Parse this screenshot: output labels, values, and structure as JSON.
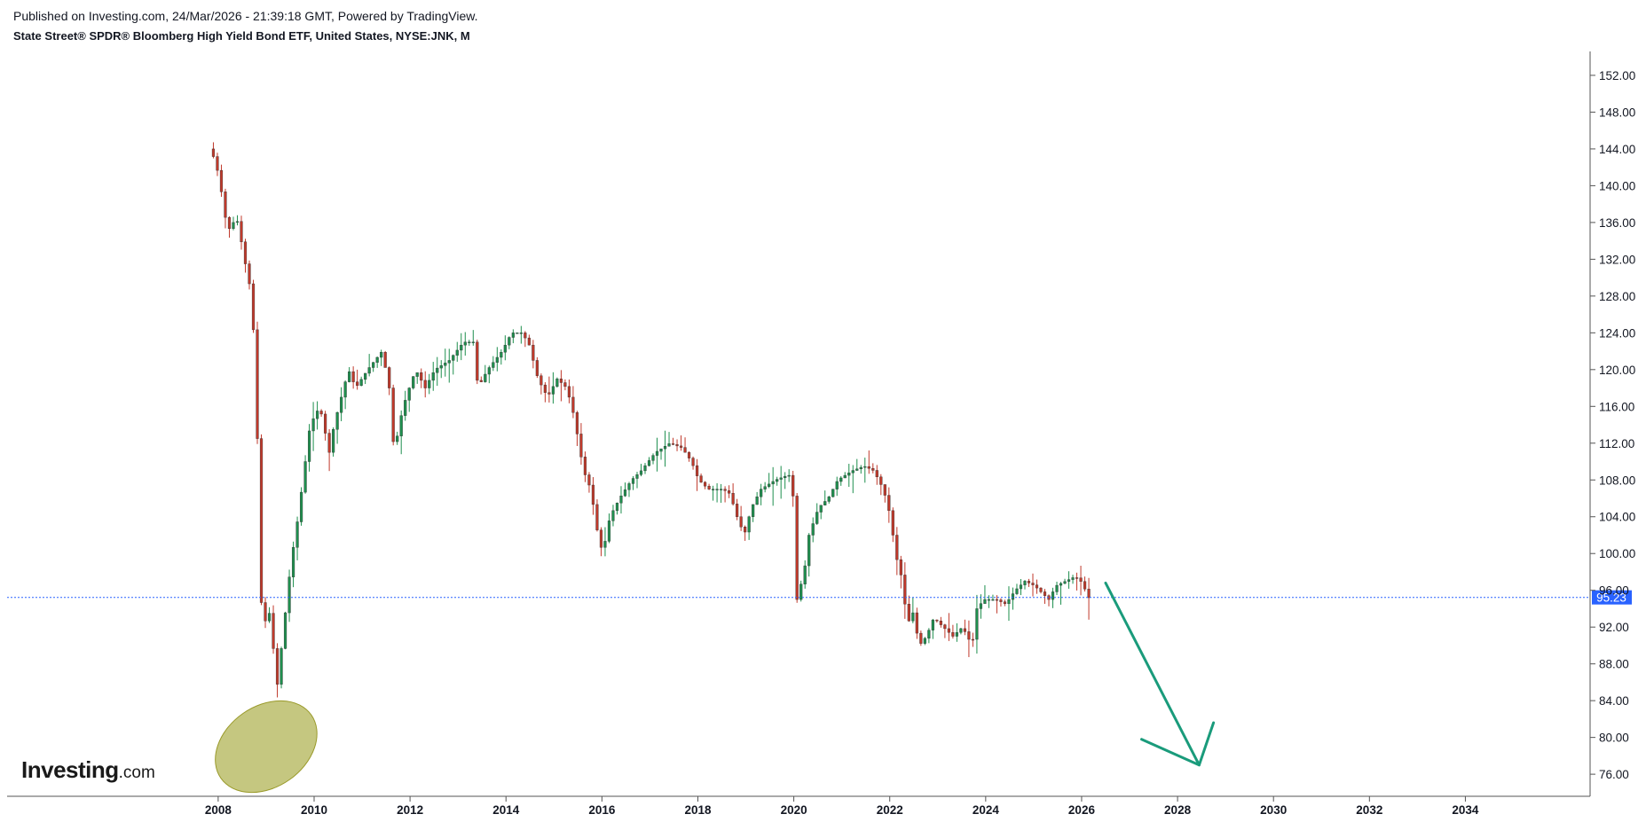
{
  "header": {
    "published": "Published on Investing.com, 24/Mar/2026 - 21:39:18 GMT, Powered by TradingView.",
    "symbol_title": "State Street® SPDR® Bloomberg High Yield Bond ETF, United States, NYSE:JNK, M"
  },
  "logo": {
    "main": "Investing",
    "suffix": ".com"
  },
  "colors": {
    "up": "#1e8f4e",
    "down": "#c0392b",
    "price_line": "#2962ff",
    "price_badge": "#2962ff",
    "arrow": "#1a9b7b",
    "ellipse_fill": "#c5c780",
    "ellipse_stroke": "#9a9a2a"
  },
  "chart_data": {
    "type": "candlestick",
    "interval": "M",
    "x_ticks": [
      "2008",
      "2010",
      "2012",
      "2014",
      "2016",
      "2018",
      "2020",
      "2022",
      "2024",
      "2026",
      "2028",
      "2030",
      "2032",
      "2034"
    ],
    "y_ticks": [
      "152.00",
      "148.00",
      "144.00",
      "140.00",
      "136.00",
      "132.00",
      "128.00",
      "124.00",
      "120.00",
      "116.00",
      "112.00",
      "108.00",
      "104.00",
      "100.00",
      "96.00",
      "92.00",
      "88.00",
      "84.00",
      "80.00",
      "76.00"
    ],
    "ylim": [
      73.6,
      154.6
    ],
    "xlim": [
      2003.6,
      2036.6
    ],
    "current_price": "95.23",
    "current_price_value": 95.23,
    "price_anchors": [
      [
        2007.9,
        144
      ],
      [
        2008.0,
        143
      ],
      [
        2008.1,
        141
      ],
      [
        2008.25,
        136
      ],
      [
        2008.35,
        135
      ],
      [
        2008.45,
        137
      ],
      [
        2008.6,
        133
      ],
      [
        2008.7,
        130
      ],
      [
        2008.8,
        128
      ],
      [
        2008.85,
        117
      ],
      [
        2008.95,
        108
      ],
      [
        2009.0,
        88
      ],
      [
        2009.1,
        95
      ],
      [
        2009.2,
        92
      ],
      [
        2009.3,
        85
      ],
      [
        2009.45,
        92
      ],
      [
        2009.6,
        99
      ],
      [
        2009.75,
        104
      ],
      [
        2009.9,
        110
      ],
      [
        2010.0,
        114
      ],
      [
        2010.2,
        116
      ],
      [
        2010.4,
        111
      ],
      [
        2010.5,
        114
      ],
      [
        2010.8,
        120
      ],
      [
        2010.95,
        118
      ],
      [
        2011.2,
        120
      ],
      [
        2011.5,
        122
      ],
      [
        2011.65,
        118
      ],
      [
        2011.75,
        111
      ],
      [
        2011.9,
        115
      ],
      [
        2012.0,
        117
      ],
      [
        2012.2,
        120
      ],
      [
        2012.4,
        118
      ],
      [
        2012.6,
        120
      ],
      [
        2012.9,
        121
      ],
      [
        2013.2,
        123
      ],
      [
        2013.4,
        123
      ],
      [
        2013.5,
        118
      ],
      [
        2013.7,
        120
      ],
      [
        2014.0,
        122
      ],
      [
        2014.2,
        124
      ],
      [
        2014.4,
        124
      ],
      [
        2014.55,
        123
      ],
      [
        2014.75,
        119
      ],
      [
        2014.95,
        117
      ],
      [
        2015.15,
        119
      ],
      [
        2015.35,
        118
      ],
      [
        2015.5,
        115
      ],
      [
        2015.6,
        112
      ],
      [
        2015.7,
        109
      ],
      [
        2015.85,
        107
      ],
      [
        2016.0,
        102
      ],
      [
        2016.1,
        100
      ],
      [
        2016.25,
        104
      ],
      [
        2016.45,
        106
      ],
      [
        2016.7,
        108
      ],
      [
        2016.9,
        109
      ],
      [
        2017.2,
        111
      ],
      [
        2017.5,
        112
      ],
      [
        2017.75,
        111.5
      ],
      [
        2017.95,
        110
      ],
      [
        2018.1,
        108
      ],
      [
        2018.3,
        107
      ],
      [
        2018.6,
        107
      ],
      [
        2018.75,
        106.5
      ],
      [
        2018.9,
        104
      ],
      [
        2019.05,
        102
      ],
      [
        2019.2,
        105
      ],
      [
        2019.4,
        107
      ],
      [
        2019.7,
        108
      ],
      [
        2019.95,
        108.5
      ],
      [
        2020.05,
        108.5
      ],
      [
        2020.15,
        95
      ],
      [
        2020.3,
        98
      ],
      [
        2020.4,
        102
      ],
      [
        2020.6,
        105
      ],
      [
        2020.8,
        106
      ],
      [
        2021.0,
        108
      ],
      [
        2021.3,
        109
      ],
      [
        2021.55,
        109.5
      ],
      [
        2021.75,
        109
      ],
      [
        2021.95,
        107
      ],
      [
        2022.1,
        104
      ],
      [
        2022.2,
        100
      ],
      [
        2022.35,
        97
      ],
      [
        2022.45,
        92
      ],
      [
        2022.55,
        94
      ],
      [
        2022.7,
        90
      ],
      [
        2022.85,
        91
      ],
      [
        2023.0,
        93
      ],
      [
        2023.2,
        92
      ],
      [
        2023.4,
        91
      ],
      [
        2023.6,
        92
      ],
      [
        2023.8,
        90
      ],
      [
        2023.9,
        94
      ],
      [
        2024.05,
        95
      ],
      [
        2024.3,
        95
      ],
      [
        2024.5,
        94.5
      ],
      [
        2024.7,
        96
      ],
      [
        2024.9,
        97
      ],
      [
        2025.1,
        96.5
      ],
      [
        2025.3,
        95.5
      ],
      [
        2025.4,
        95
      ],
      [
        2025.55,
        96.5
      ],
      [
        2025.75,
        97
      ],
      [
        2025.95,
        97.5
      ],
      [
        2026.1,
        96.8
      ],
      [
        2026.22,
        95.2
      ]
    ],
    "forecast_arrow": [
      [
        2026.5,
        96.8
      ],
      [
        2028.45,
        77.0
      ]
    ],
    "forecast_arrow_head": [
      [
        2027.25,
        79.8
      ],
      [
        2028.45,
        77.0
      ],
      [
        2028.75,
        81.6
      ]
    ],
    "highlight_ellipse": {
      "cx": 2009.0,
      "cy": 79.0,
      "rx": 1.15,
      "ry": 4.4,
      "rotation": -35
    }
  }
}
